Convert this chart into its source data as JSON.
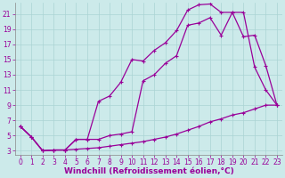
{
  "xlabel": "Windchill (Refroidissement éolien,°C)",
  "background_color": "#cceaea",
  "grid_color": "#aad4d4",
  "line_color": "#990099",
  "xlim": [
    -0.5,
    23.5
  ],
  "ylim": [
    2.5,
    22.5
  ],
  "xticks": [
    0,
    1,
    2,
    3,
    4,
    5,
    6,
    7,
    8,
    9,
    10,
    11,
    12,
    13,
    14,
    15,
    16,
    17,
    18,
    19,
    20,
    21,
    22,
    23
  ],
  "yticks": [
    3,
    5,
    7,
    9,
    11,
    13,
    15,
    17,
    19,
    21
  ],
  "line1_x": [
    0,
    1,
    2,
    3,
    4,
    5,
    6,
    7,
    8,
    9,
    10,
    11,
    12,
    13,
    14,
    15,
    16,
    17,
    18,
    19,
    20,
    21,
    22,
    23
  ],
  "line1_y": [
    6.2,
    4.8,
    3.0,
    3.1,
    3.1,
    3.2,
    3.3,
    3.4,
    3.6,
    3.8,
    4.0,
    4.2,
    4.5,
    4.8,
    5.2,
    5.7,
    6.2,
    6.8,
    7.2,
    7.7,
    8.0,
    8.5,
    9.0,
    9.0
  ],
  "line2_x": [
    0,
    1,
    2,
    3,
    4,
    5,
    6,
    7,
    8,
    9,
    10,
    11,
    12,
    13,
    14,
    15,
    16,
    17,
    18,
    19,
    20,
    21,
    22,
    23
  ],
  "line2_y": [
    6.2,
    4.8,
    3.0,
    3.1,
    3.1,
    4.5,
    4.5,
    9.5,
    10.2,
    12.0,
    15.0,
    14.8,
    16.2,
    17.2,
    18.8,
    21.5,
    22.2,
    22.3,
    21.2,
    21.2,
    21.2,
    14.0,
    11.0,
    9.0
  ],
  "line3_x": [
    0,
    1,
    2,
    3,
    4,
    5,
    6,
    7,
    8,
    9,
    10,
    11,
    12,
    13,
    14,
    15,
    16,
    17,
    18,
    19,
    20,
    21,
    22,
    23
  ],
  "line3_y": [
    6.2,
    4.8,
    3.0,
    3.1,
    3.1,
    4.5,
    4.5,
    4.5,
    5.0,
    5.2,
    5.5,
    12.2,
    13.0,
    14.5,
    15.5,
    19.5,
    19.8,
    20.5,
    18.2,
    21.2,
    18.0,
    18.2,
    14.2,
    9.0
  ],
  "tick_fontsize": 5.5,
  "xlabel_fontsize": 6.5
}
